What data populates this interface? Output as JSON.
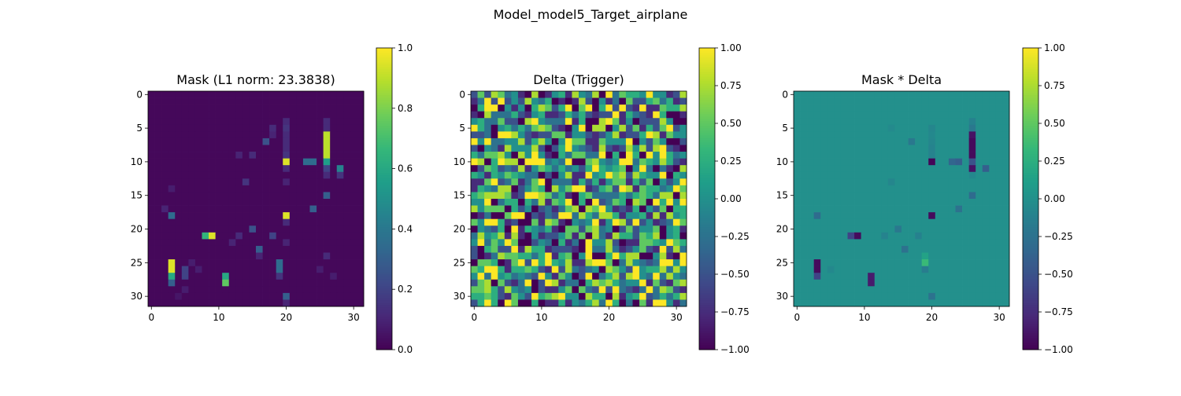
{
  "figure": {
    "suptitle": "Model_model5_Target_airplane"
  },
  "chart_data": [
    {
      "type": "heatmap",
      "title": "Mask (L1 norm: 23.3838)",
      "rows": 32,
      "cols": 32,
      "x_ticks": [
        "0",
        "10",
        "20",
        "30"
      ],
      "y_ticks": [
        "0",
        "5",
        "10",
        "15",
        "20",
        "25",
        "30"
      ],
      "colorbar": {
        "range": [
          0,
          1
        ],
        "ticks": [
          "0.0",
          "0.2",
          "0.4",
          "0.6",
          "0.8",
          "1.0"
        ]
      },
      "colormap": "viridis",
      "background": 0.02,
      "cells": [
        [
          9,
          13,
          0.1
        ],
        [
          9,
          15,
          0.12
        ],
        [
          5,
          18,
          0.12
        ],
        [
          6,
          18,
          0.1
        ],
        [
          4,
          20,
          0.12
        ],
        [
          5,
          20,
          0.15
        ],
        [
          6,
          20,
          0.12
        ],
        [
          7,
          20,
          0.12
        ],
        [
          8,
          20,
          0.12
        ],
        [
          9,
          20,
          0.15
        ],
        [
          10,
          20,
          0.95
        ],
        [
          11,
          20,
          0.12
        ],
        [
          4,
          26,
          0.12
        ],
        [
          5,
          26,
          0.12
        ],
        [
          6,
          26,
          0.9
        ],
        [
          7,
          26,
          0.9
        ],
        [
          8,
          26,
          0.9
        ],
        [
          9,
          26,
          0.9
        ],
        [
          10,
          26,
          0.55
        ],
        [
          11,
          26,
          0.2
        ],
        [
          12,
          26,
          0.12
        ],
        [
          7,
          17,
          0.25
        ],
        [
          10,
          23,
          0.35
        ],
        [
          10,
          24,
          0.35
        ],
        [
          11,
          28,
          0.45
        ],
        [
          12,
          28,
          0.15
        ],
        [
          13,
          20,
          0.1
        ],
        [
          13,
          14,
          0.15
        ],
        [
          15,
          26,
          0.3
        ],
        [
          17,
          24,
          0.3
        ],
        [
          18,
          20,
          0.95
        ],
        [
          19,
          20,
          0.12
        ],
        [
          18,
          3,
          0.35
        ],
        [
          17,
          2,
          0.1
        ],
        [
          21,
          8,
          0.65
        ],
        [
          21,
          9,
          0.95
        ],
        [
          20,
          15,
          0.25
        ],
        [
          21,
          13,
          0.12
        ],
        [
          21,
          18,
          0.2
        ],
        [
          22,
          12,
          0.1
        ],
        [
          22,
          20,
          0.1
        ],
        [
          23,
          16,
          0.3
        ],
        [
          24,
          16,
          0.1
        ],
        [
          24,
          26,
          0.12
        ],
        [
          25,
          3,
          0.95
        ],
        [
          26,
          3,
          0.95
        ],
        [
          27,
          3,
          0.6
        ],
        [
          28,
          3,
          0.3
        ],
        [
          26,
          5,
          0.2
        ],
        [
          27,
          5,
          0.2
        ],
        [
          25,
          6,
          0.08
        ],
        [
          27,
          11,
          0.6
        ],
        [
          28,
          11,
          0.75
        ],
        [
          25,
          19,
          0.35
        ],
        [
          26,
          19,
          0.35
        ],
        [
          27,
          19,
          0.15
        ],
        [
          30,
          20,
          0.3
        ],
        [
          31,
          20,
          0.1
        ],
        [
          26,
          7,
          0.08
        ],
        [
          29,
          5,
          0.08
        ],
        [
          30,
          4,
          0.06
        ],
        [
          26,
          25,
          0.08
        ],
        [
          27,
          27,
          0.08
        ],
        [
          14,
          3,
          0.08
        ]
      ]
    },
    {
      "type": "heatmap",
      "title": "Delta (Trigger)",
      "rows": 32,
      "cols": 32,
      "x_ticks": [
        "0",
        "10",
        "20",
        "30"
      ],
      "y_ticks": [
        "0",
        "5",
        "10",
        "15",
        "20",
        "25",
        "30"
      ],
      "colorbar": {
        "range": [
          -1,
          1
        ],
        "ticks": [
          "−1.00",
          "−0.75",
          "−0.50",
          "−0.25",
          "0.00",
          "0.25",
          "0.50",
          "0.75",
          "1.00"
        ]
      },
      "colormap": "viridis",
      "pattern": "random",
      "seed": 5,
      "levels": [
        -1,
        -0.75,
        -0.5,
        -0.25,
        0,
        0.25,
        0.5,
        0.75,
        1
      ]
    },
    {
      "type": "heatmap",
      "title": "Mask * Delta",
      "rows": 32,
      "cols": 32,
      "x_ticks": [
        "0",
        "10",
        "20",
        "30"
      ],
      "y_ticks": [
        "0",
        "5",
        "10",
        "15",
        "20",
        "25",
        "30"
      ],
      "colorbar": {
        "range": [
          -1,
          1
        ],
        "ticks": [
          "−1.00",
          "−0.75",
          "−0.50",
          "−0.25",
          "0.00",
          "0.25",
          "0.50",
          "0.75",
          "1.00"
        ]
      },
      "colormap": "viridis",
      "background": 0.0,
      "cells": [
        [
          5,
          20,
          -0.08
        ],
        [
          6,
          20,
          -0.06
        ],
        [
          7,
          20,
          -0.08
        ],
        [
          8,
          20,
          -0.1
        ],
        [
          9,
          20,
          -0.1
        ],
        [
          10,
          20,
          -0.98
        ],
        [
          4,
          26,
          -0.12
        ],
        [
          5,
          26,
          -0.2
        ],
        [
          6,
          26,
          -0.9
        ],
        [
          7,
          26,
          -0.95
        ],
        [
          8,
          26,
          -0.95
        ],
        [
          9,
          26,
          -0.95
        ],
        [
          10,
          26,
          -0.5
        ],
        [
          11,
          26,
          -0.9
        ],
        [
          12,
          26,
          -0.06
        ],
        [
          7,
          17,
          -0.2
        ],
        [
          5,
          14,
          -0.05
        ],
        [
          10,
          23,
          -0.35
        ],
        [
          10,
          24,
          -0.4
        ],
        [
          11,
          28,
          -0.4
        ],
        [
          15,
          26,
          -0.3
        ],
        [
          17,
          24,
          -0.25
        ],
        [
          18,
          20,
          -0.95
        ],
        [
          18,
          3,
          -0.3
        ],
        [
          21,
          8,
          -0.6
        ],
        [
          21,
          9,
          -0.95
        ],
        [
          20,
          15,
          -0.2
        ],
        [
          21,
          13,
          -0.1
        ],
        [
          21,
          18,
          -0.12
        ],
        [
          23,
          16,
          -0.25
        ],
        [
          24,
          19,
          0.15
        ],
        [
          25,
          19,
          0.35
        ],
        [
          26,
          19,
          -0.15
        ],
        [
          25,
          3,
          -0.95
        ],
        [
          26,
          3,
          -0.95
        ],
        [
          27,
          3,
          -0.6
        ],
        [
          26,
          5,
          -0.06
        ],
        [
          27,
          11,
          -0.85
        ],
        [
          28,
          11,
          -0.85
        ],
        [
          30,
          20,
          -0.25
        ],
        [
          13,
          14,
          -0.08
        ]
      ]
    }
  ]
}
